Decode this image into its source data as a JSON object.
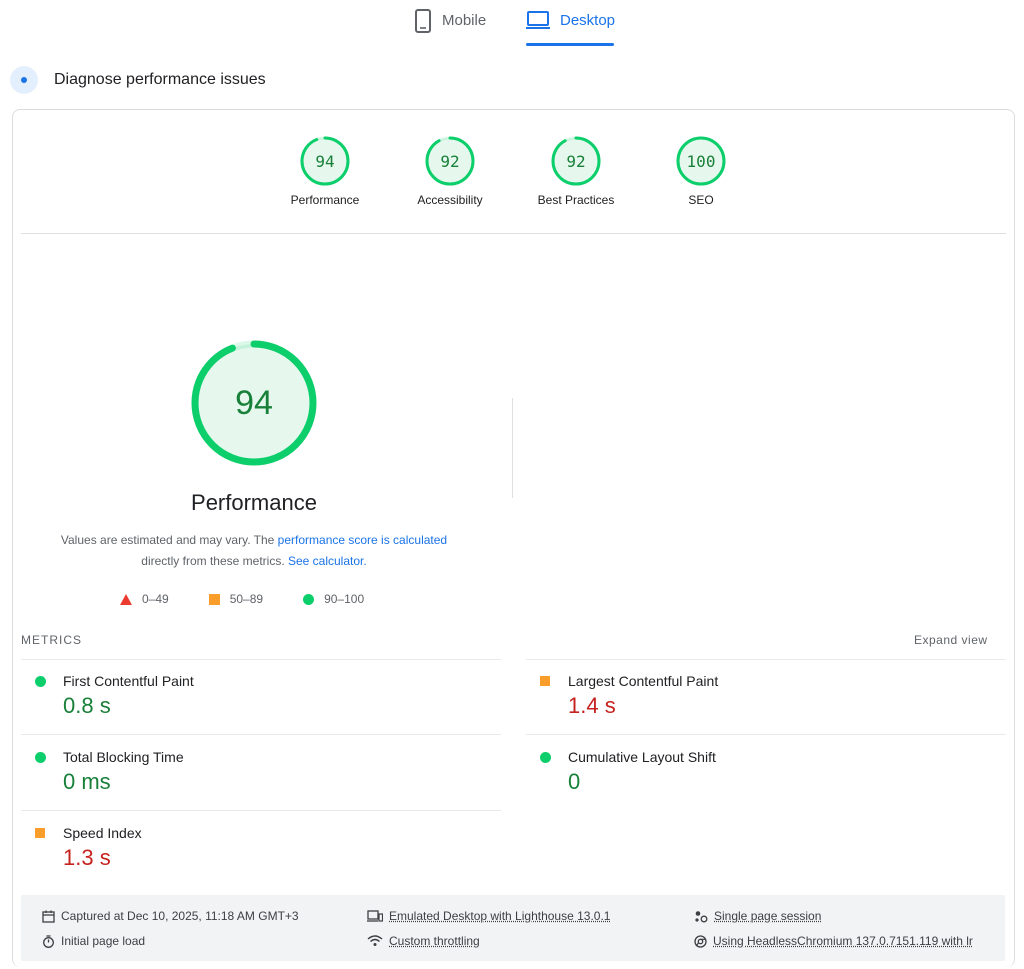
{
  "tabs": {
    "mobile": "Mobile",
    "desktop": "Desktop",
    "active": "Desktop"
  },
  "section": {
    "title": "Diagnose performance issues"
  },
  "scores": [
    {
      "label": "Performance",
      "value": "94"
    },
    {
      "label": "Accessibility",
      "value": "92"
    },
    {
      "label": "Best Practices",
      "value": "92"
    },
    {
      "label": "SEO",
      "value": "100"
    }
  ],
  "performance": {
    "score": "94",
    "title": "Performance",
    "desc_pre": "Values are estimated and may vary. The ",
    "desc_link1": "performance score is calculated",
    "desc_mid": " directly from these metrics. ",
    "desc_link2": "See calculator.",
    "legend": {
      "fail": "0–49",
      "average": "50–89",
      "pass": "90–100"
    }
  },
  "metrics": {
    "title": "METRICS",
    "expand": "Expand view",
    "items": [
      {
        "name": "First Contentful Paint",
        "value": "0.8 s",
        "status": "pass"
      },
      {
        "name": "Largest Contentful Paint",
        "value": "1.4 s",
        "status": "average"
      },
      {
        "name": "Total Blocking Time",
        "value": "0 ms",
        "status": "pass"
      },
      {
        "name": "Cumulative Layout Shift",
        "value": "0",
        "status": "pass"
      },
      {
        "name": "Speed Index",
        "value": "1.3 s",
        "status": "average"
      }
    ]
  },
  "info": {
    "captured": "Captured at Dec 10, 2025, 11:18 AM GMT+3",
    "load": "Initial page load",
    "emulated": "Emulated Desktop with Lighthouse 13.0.1",
    "throttling": "Custom throttling",
    "session": "Single page session",
    "browser": "Using HeadlessChromium 137.0.7151.119 with lr"
  },
  "colors": {
    "pass": "#0cce6b",
    "average": "#fa9d2a",
    "fail": "#eb3a2e",
    "accent": "#1a73e8"
  }
}
